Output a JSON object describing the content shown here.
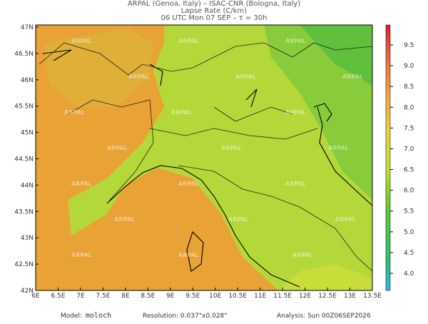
{
  "header": {
    "line1": "ARPAL (Genoa, Italy)  –  ISAC-CNR (Bologna, Italy)",
    "line2": "Lapse Rate (C/km)",
    "line3": "06 UTC Mon 07 SEP  –  τ = 30h"
  },
  "map": {
    "lon_labels": [
      "6E",
      "6.5E",
      "7E",
      "7.5E",
      "8E",
      "8.5E",
      "9E",
      "9.5E",
      "10E",
      "10.5E",
      "11E",
      "11.5E",
      "12E",
      "12.5E",
      "13E",
      "13.5E"
    ],
    "lat_labels": [
      "47N",
      "46.5N",
      "46N",
      "45.5N",
      "45N",
      "44.5N",
      "44N",
      "43.5N",
      "43N",
      "42.5N",
      "42N"
    ],
    "watermark": "ARPAL"
  },
  "colorbar": {
    "labels": [
      "9.5",
      "9.0",
      "8.5",
      "8.0",
      "7.5",
      "7.0",
      "6.5",
      "6.0",
      "5.5",
      "5.0",
      "4.5",
      "4.0"
    ]
  },
  "footer": {
    "model_label": "Model:",
    "model": "moloch",
    "resolution": "Resolution: 0.037°x0.028°",
    "analysis": "Analysis: Sun 00Z06SEP2026"
  }
}
